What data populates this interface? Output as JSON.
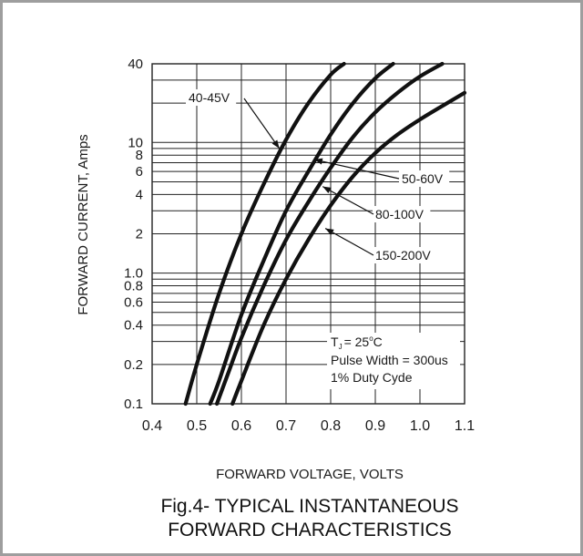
{
  "chart_data": {
    "type": "line",
    "title": "Fig.4- TYPICAL INSTANTANEOUS FORWARD CHARACTERISTICS",
    "title_lines": [
      "Fig.4- TYPICAL INSTANTANEOUS",
      "FORWARD CHARACTERISTICS"
    ],
    "xlabel": "FORWARD VOLTAGE, VOLTS",
    "ylabel": "FORWARD CURRENT, Amps",
    "xlim": [
      0.4,
      1.1
    ],
    "ylim": [
      0.1,
      40
    ],
    "yscale": "log",
    "grid": true,
    "x_ticks": [
      "0.4",
      "0.5",
      "0.6",
      "0.7",
      "0.8",
      "0.9",
      "1.0",
      "1.1"
    ],
    "y_ticks": [
      {
        "value": 0.1,
        "label": "0.1"
      },
      {
        "value": 0.2,
        "label": "0.2"
      },
      {
        "value": 0.4,
        "label": "0.4"
      },
      {
        "value": 0.6,
        "label": "0.6"
      },
      {
        "value": 0.8,
        "label": "0.8"
      },
      {
        "value": 1.0,
        "label": "1.0"
      },
      {
        "value": 2,
        "label": "2"
      },
      {
        "value": 4,
        "label": "4"
      },
      {
        "value": 6,
        "label": "6"
      },
      {
        "value": 8,
        "label": "8"
      },
      {
        "value": 10,
        "label": "10"
      },
      {
        "value": 40,
        "label": "40"
      }
    ],
    "y_gridlines": [
      0.1,
      0.2,
      0.3,
      0.4,
      0.5,
      0.6,
      0.7,
      0.8,
      0.9,
      1,
      2,
      3,
      4,
      5,
      6,
      7,
      8,
      9,
      10,
      20,
      30,
      40
    ],
    "series": [
      {
        "name": "40-45V",
        "x": [
          0.475,
          0.5,
          0.55,
          0.6,
          0.65,
          0.7,
          0.75,
          0.8,
          0.83
        ],
        "y": [
          0.1,
          0.2,
          0.7,
          2.0,
          4.8,
          10.5,
          20,
          33,
          40
        ]
      },
      {
        "name": "50-60V",
        "x": [
          0.53,
          0.55,
          0.6,
          0.65,
          0.7,
          0.75,
          0.8,
          0.85,
          0.9,
          0.94
        ],
        "y": [
          0.1,
          0.15,
          0.48,
          1.25,
          3.0,
          6.0,
          11.5,
          20,
          31,
          40
        ]
      },
      {
        "name": "80-100V",
        "x": [
          0.545,
          0.57,
          0.6,
          0.65,
          0.7,
          0.75,
          0.8,
          0.85,
          0.9,
          0.95,
          1.0,
          1.05
        ],
        "y": [
          0.1,
          0.17,
          0.32,
          0.8,
          1.8,
          3.5,
          6.4,
          11,
          17,
          24,
          32,
          40
        ]
      },
      {
        "name": "150-200V",
        "x": [
          0.58,
          0.6,
          0.65,
          0.7,
          0.75,
          0.8,
          0.85,
          0.9,
          0.95,
          1.0,
          1.05,
          1.1
        ],
        "y": [
          0.1,
          0.15,
          0.4,
          0.9,
          1.8,
          3.3,
          5.5,
          8.3,
          11.5,
          15,
          19,
          24
        ]
      }
    ],
    "annotations": [
      {
        "text": "T",
        "sub": "J",
        "rest": "= 25",
        "sup": "o",
        "tail": "C"
      },
      {
        "text": "Pulse Width = 300us"
      },
      {
        "text": "1% Duty Cyde"
      }
    ],
    "colors": {
      "curve": "#111111",
      "grid": "#222222",
      "frame": "#9e9e9e",
      "text": "#1a1a1a"
    }
  }
}
